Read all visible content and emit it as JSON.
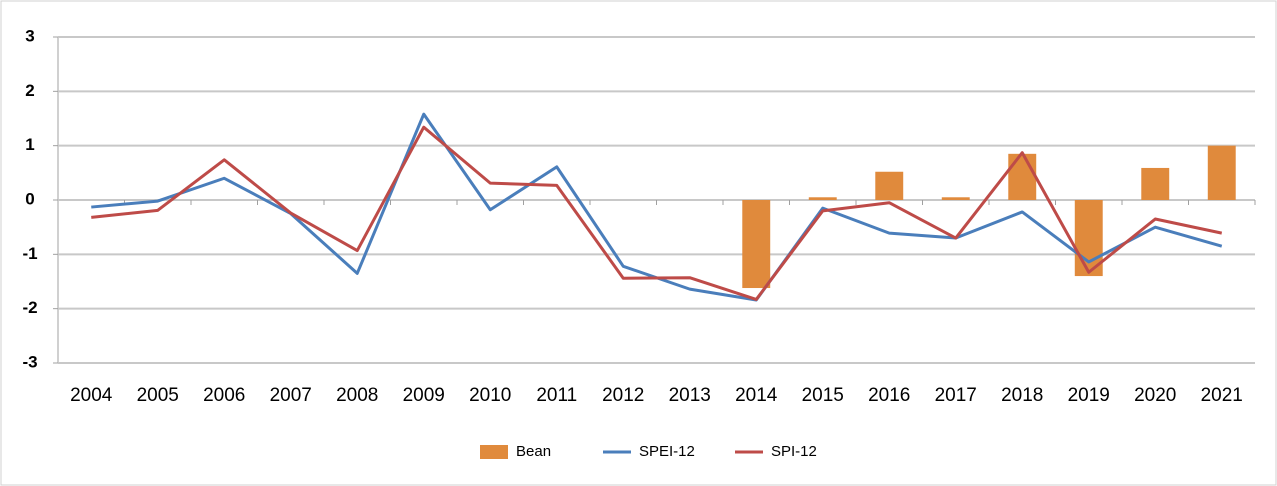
{
  "chart_data": {
    "type": "bar",
    "categories": [
      "2004",
      "2005",
      "2006",
      "2007",
      "2008",
      "2009",
      "2010",
      "2011",
      "2012",
      "2013",
      "2014",
      "2015",
      "2016",
      "2017",
      "2018",
      "2019",
      "2020",
      "2021"
    ],
    "series": [
      {
        "name": "Bean",
        "type": "bar",
        "color": "#e08a3c",
        "values": [
          null,
          null,
          null,
          null,
          null,
          null,
          null,
          null,
          null,
          null,
          -1.62,
          0.05,
          0.52,
          0.05,
          0.85,
          -1.4,
          0.59,
          1.0
        ]
      },
      {
        "name": "SPEI-12",
        "type": "line",
        "color": "#4a7ebb",
        "values": [
          -0.13,
          -0.02,
          0.4,
          -0.25,
          -1.35,
          1.58,
          -0.18,
          0.61,
          -1.22,
          -1.64,
          -1.84,
          -0.15,
          -0.61,
          -0.7,
          -0.22,
          -1.14,
          -0.5,
          -0.85
        ]
      },
      {
        "name": "SPI-12",
        "type": "line",
        "color": "#be4b48",
        "values": [
          -0.32,
          -0.19,
          0.74,
          -0.24,
          -0.93,
          1.34,
          0.31,
          0.27,
          -1.44,
          -1.43,
          -1.83,
          -0.2,
          -0.05,
          -0.7,
          0.87,
          -1.33,
          -0.35,
          -0.61
        ]
      }
    ],
    "ylim": [
      -3,
      3
    ],
    "yticks": [
      -3,
      -2,
      -1,
      0,
      1,
      2,
      3
    ],
    "grid": true,
    "legend": "bottom"
  }
}
